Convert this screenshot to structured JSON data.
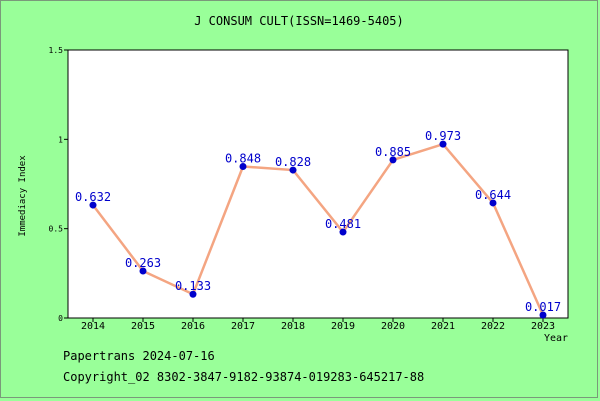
{
  "chart_data": {
    "type": "line",
    "title": "J CONSUM CULT(ISSN=1469-5405)",
    "xlabel": "Year",
    "ylabel": "Immediacy Index",
    "categories": [
      "2014",
      "2015",
      "2016",
      "2017",
      "2018",
      "2019",
      "2020",
      "2021",
      "2022",
      "2023"
    ],
    "values": [
      0.632,
      0.263,
      0.133,
      0.848,
      0.828,
      0.481,
      0.885,
      0.973,
      0.644,
      0.017
    ],
    "ylim": [
      0,
      1.5
    ],
    "yticks": [
      0,
      0.5,
      1,
      1.5
    ],
    "ytick_labels": [
      "0",
      "0.5",
      "1",
      "1.5"
    ],
    "data_labels": [
      "0.632",
      "0.263",
      "0.133",
      "0.848",
      "0.828",
      "0.481",
      "0.885",
      "0.973",
      "0.644",
      "0.017"
    ],
    "grid": false,
    "line_color": "#f4a582",
    "marker_color": "#0000cc",
    "label_color": "#0000cc"
  },
  "footer": {
    "line1": "Papertrans 2024-07-16",
    "line2": "Copyright_02 8302-3847-9182-93874-019283-645217-88"
  }
}
